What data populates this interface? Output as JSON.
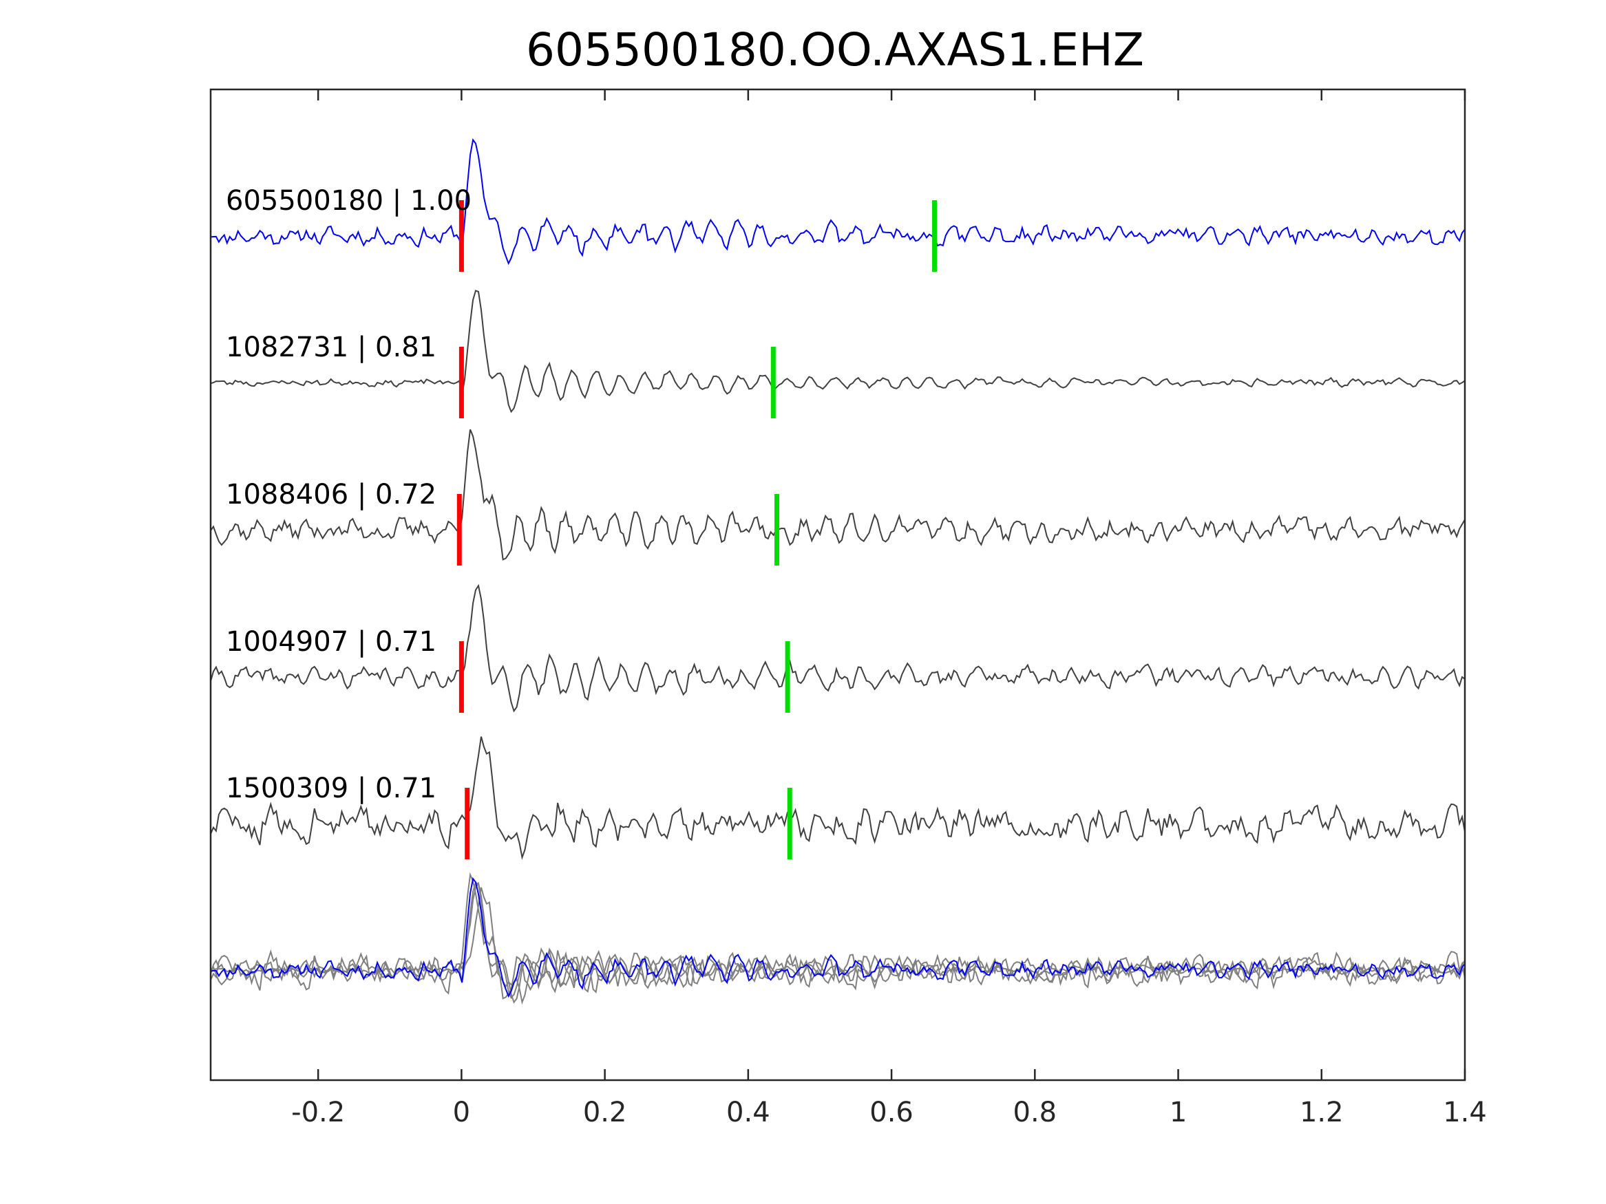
{
  "chart_data": {
    "type": "line",
    "title": "605500180.OO.AXAS1.EHZ",
    "xlabel": "",
    "ylabel": "",
    "xlim": [
      -0.35,
      1.4
    ],
    "xticks": [
      -0.2,
      0,
      0.2,
      0.4,
      0.6,
      0.8,
      1,
      1.2,
      1.4
    ],
    "xtick_labels": [
      "-0.2",
      "0",
      "0.2",
      "0.4",
      "0.6",
      "0.8",
      "1",
      "1.2",
      "1.4"
    ],
    "grid": false,
    "traces": [
      {
        "label": "605500180 | 1.00",
        "color": "#0000ff",
        "p_pick": 0.0,
        "s_pick": 0.66,
        "noise_level": 0.3,
        "coda_strength": 0.65
      },
      {
        "label": "1082731 | 0.81",
        "color": "#404040",
        "p_pick": 0.0,
        "s_pick": 0.435,
        "noise_level": 0.12,
        "coda_strength": 0.85
      },
      {
        "label": "1088406 | 0.72",
        "color": "#404040",
        "p_pick": -0.003,
        "s_pick": 0.44,
        "noise_level": 0.35,
        "coda_strength": 0.75
      },
      {
        "label": "1004907 | 0.71",
        "color": "#404040",
        "p_pick": 0.0,
        "s_pick": 0.455,
        "noise_level": 0.3,
        "coda_strength": 0.85
      },
      {
        "label": "1500309 | 0.71",
        "color": "#404040",
        "p_pick": 0.008,
        "s_pick": 0.458,
        "noise_level": 0.55,
        "coda_strength": 0.85
      }
    ],
    "overlay": {
      "colors": [
        "#808080",
        "#0000ff"
      ]
    },
    "p_pick_color": "#ff0000",
    "s_pick_color": "#00dd00"
  }
}
